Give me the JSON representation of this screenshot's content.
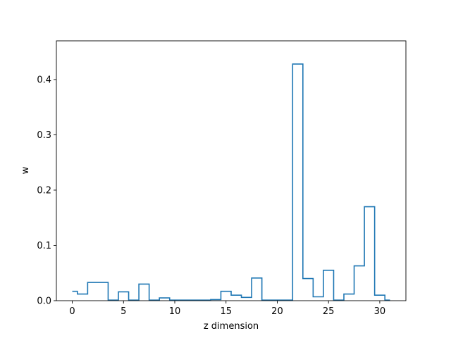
{
  "chart_data": {
    "type": "step",
    "xlabel": "z dimension",
    "ylabel": "w",
    "xlim": [
      -1.55,
      32.55
    ],
    "ylim": [
      0,
      0.47
    ],
    "xticks": [
      0,
      5,
      10,
      15,
      20,
      25,
      30
    ],
    "yticks": [
      0.0,
      0.1,
      0.2,
      0.3,
      0.4
    ],
    "xtick_labels": [
      "0",
      "5",
      "10",
      "15",
      "20",
      "25",
      "30"
    ],
    "ytick_labels": [
      "0.0",
      "0.1",
      "0.2",
      "0.3",
      "0.4"
    ],
    "step_where": "mid",
    "x": [
      0,
      1,
      2,
      3,
      4,
      5,
      6,
      7,
      8,
      9,
      10,
      11,
      12,
      13,
      14,
      15,
      16,
      17,
      18,
      19,
      20,
      21,
      22,
      23,
      24,
      25,
      26,
      27,
      28,
      29,
      30,
      31
    ],
    "values": [
      0.017,
      0.012,
      0.033,
      0.033,
      0.001,
      0.016,
      0.001,
      0.03,
      0.001,
      0.005,
      0.001,
      0.001,
      0.001,
      0.001,
      0.002,
      0.017,
      0.01,
      0.006,
      0.041,
      0.001,
      0.001,
      0.001,
      0.428,
      0.04,
      0.007,
      0.055,
      0.001,
      0.012,
      0.063,
      0.17,
      0.01,
      0.001
    ],
    "line_color": "#1f77b4",
    "grid": false,
    "legend": false
  }
}
